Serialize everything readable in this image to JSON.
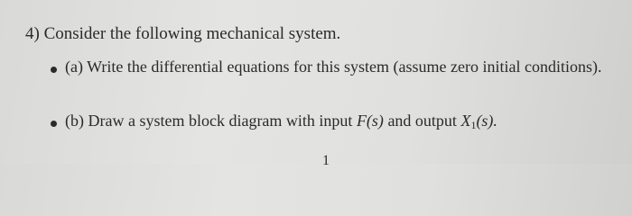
{
  "heading": "4) Consider the following mechanical system.",
  "items": [
    {
      "text": "(a) Write the differential equations for this system (assume zero initial conditions)."
    },
    {
      "parts": [
        "(b) Draw a system block diagram with input ",
        "F(s)",
        " and output ",
        "X",
        "1",
        "(s)."
      ]
    }
  ],
  "page_number": "1"
}
